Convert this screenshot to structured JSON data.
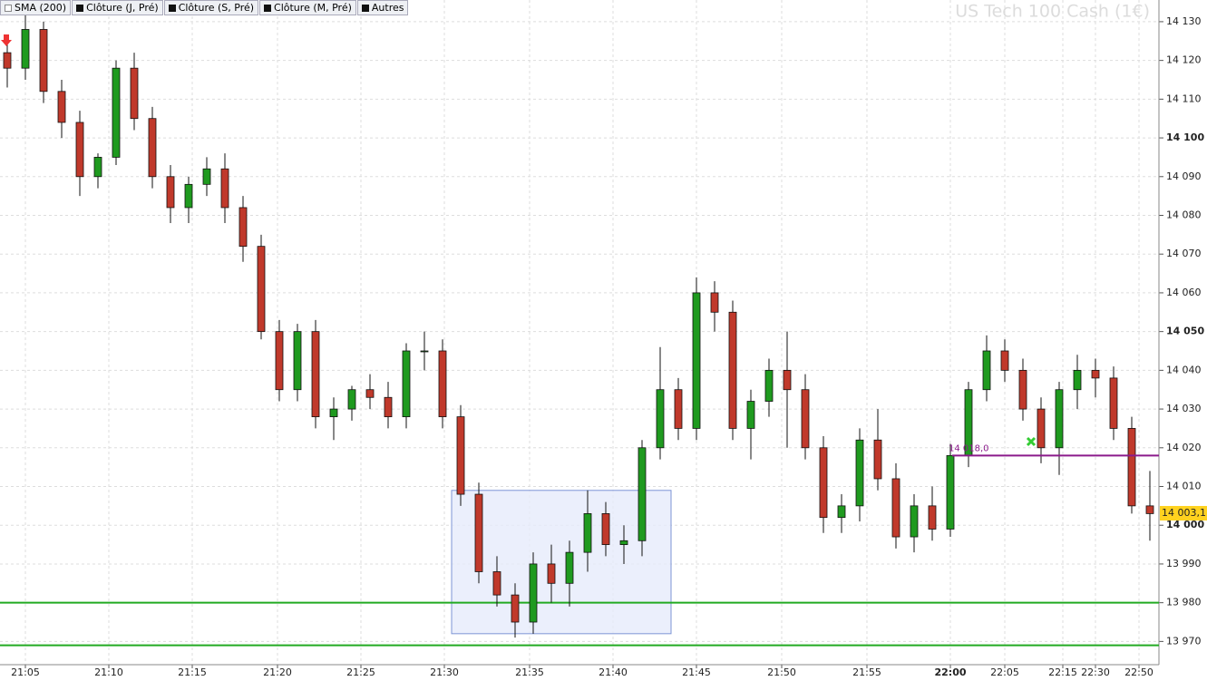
{
  "chart_data": {
    "type": "candlestick",
    "title": "US Tech 100 Cash (1€)",
    "toolbar": [
      "SMA (200)",
      "Clôture (J, Pré)",
      "Clôture (S, Pré)",
      "Clôture (M, Pré)",
      "Autres"
    ],
    "open": [
      14122,
      14118,
      14128,
      14112,
      14104,
      14090,
      14095,
      14118,
      14105,
      14090,
      14082,
      14088,
      14092,
      14082,
      14072,
      14050,
      14035,
      14050,
      14028,
      14030,
      14035,
      14033,
      14028,
      14045,
      14045,
      14028,
      14008,
      13988,
      13982,
      13975,
      13990,
      13985,
      13993,
      14003,
      13995,
      13996,
      14020,
      14035,
      14025,
      14060,
      14055,
      14025,
      14032,
      14040,
      14035,
      14020,
      14002,
      14005,
      14022,
      14012,
      13997,
      14005,
      13999,
      14018,
      14035,
      14045,
      14040,
      14030,
      14020,
      14035,
      14040,
      14038,
      14025,
      14005
    ],
    "high": [
      14126,
      14132,
      14130,
      14115,
      14107,
      14096,
      14120,
      14122,
      14108,
      14093,
      14090,
      14095,
      14096,
      14085,
      14075,
      14053,
      14052,
      14053,
      14033,
      14036,
      14039,
      14037,
      14047,
      14050,
      14048,
      14031,
      14011,
      13992,
      13985,
      13993,
      13995,
      13996,
      14009,
      14006,
      14000,
      14022,
      14046,
      14038,
      14064,
      14063,
      14058,
      14035,
      14043,
      14050,
      14039,
      14023,
      14008,
      14025,
      14030,
      14016,
      14008,
      14010,
      14021,
      14037,
      14049,
      14048,
      14043,
      14033,
      14037,
      14044,
      14043,
      14041,
      14028,
      14014
    ],
    "low": [
      14113,
      14115,
      14109,
      14100,
      14085,
      14087,
      14093,
      14102,
      14087,
      14078,
      14078,
      14085,
      14078,
      14068,
      14048,
      14032,
      14032,
      14025,
      14022,
      14027,
      14030,
      14025,
      14025,
      14040,
      14025,
      14005,
      13985,
      13979,
      13971,
      13972,
      13980,
      13979,
      13988,
      13992,
      13990,
      13992,
      14017,
      14022,
      14022,
      14050,
      14022,
      14017,
      14028,
      14020,
      14017,
      13998,
      13998,
      14001,
      14009,
      13994,
      13993,
      13996,
      13997,
      14015,
      14032,
      14037,
      14027,
      14016,
      14013,
      14030,
      14033,
      14022,
      14003,
      13996
    ],
    "close": [
      14118,
      14128,
      14112,
      14104,
      14090,
      14095,
      14118,
      14105,
      14090,
      14082,
      14088,
      14092,
      14082,
      14072,
      14050,
      14035,
      14050,
      14028,
      14030,
      14035,
      14033,
      14028,
      14045,
      14045,
      14028,
      14008,
      13988,
      13982,
      13975,
      13990,
      13985,
      13993,
      14003,
      13995,
      13996,
      14020,
      14035,
      14025,
      14060,
      14055,
      14025,
      14032,
      14040,
      14035,
      14020,
      14002,
      14005,
      14022,
      14012,
      13997,
      14005,
      13999,
      14018,
      14035,
      14045,
      14040,
      14030,
      14020,
      14035,
      14040,
      14038,
      14025,
      14005,
      14003
    ],
    "up_color": "#1f9a1f",
    "down_color": "#c0392b",
    "ylim": [
      13964,
      14135.6
    ],
    "yticks": [
      {
        "value": 13970,
        "label": "13 970"
      },
      {
        "value": 13980,
        "label": "13 980"
      },
      {
        "value": 13990,
        "label": "13 990"
      },
      {
        "value": 14000,
        "label": "14 000"
      },
      {
        "value": 14010,
        "label": "14 010"
      },
      {
        "value": 14020,
        "label": "14 020"
      },
      {
        "value": 14030,
        "label": "14 030"
      },
      {
        "value": 14040,
        "label": "14 040"
      },
      {
        "value": 14050,
        "label": "14 050"
      },
      {
        "value": 14060,
        "label": "14 060"
      },
      {
        "value": 14070,
        "label": "14 070"
      },
      {
        "value": 14080,
        "label": "14 080"
      },
      {
        "value": 14090,
        "label": "14 090"
      },
      {
        "value": 14100,
        "label": "14 100"
      },
      {
        "value": 14110,
        "label": "14 110"
      },
      {
        "value": 14120,
        "label": "14 120"
      },
      {
        "value": 14130,
        "label": "14 130"
      }
    ],
    "xlim": [
      -0.4,
      63.5
    ],
    "xticks": [
      {
        "value": 1.0,
        "label": "21:05"
      },
      {
        "value": 5.6,
        "label": "21:10"
      },
      {
        "value": 10.2,
        "label": "21:15"
      },
      {
        "value": 14.9,
        "label": "21:20"
      },
      {
        "value": 19.5,
        "label": "21:25"
      },
      {
        "value": 24.1,
        "label": "21:30"
      },
      {
        "value": 28.8,
        "label": "21:35"
      },
      {
        "value": 33.4,
        "label": "21:40"
      },
      {
        "value": 38.0,
        "label": "21:45"
      },
      {
        "value": 42.7,
        "label": "21:50"
      },
      {
        "value": 47.4,
        "label": "21:55"
      },
      {
        "value": 52.0,
        "label": "22:00"
      },
      {
        "value": 55.0,
        "label": "22:05"
      },
      {
        "value": 58.2,
        "label": "22:15"
      },
      {
        "value": 60.0,
        "label": "22:30"
      },
      {
        "value": 62.4,
        "label": "22:50"
      }
    ],
    "grid": true,
    "levels": [
      {
        "value": 13980,
        "color": "#22aa22"
      },
      {
        "value": 13969,
        "color": "#22aa22"
      }
    ],
    "order": {
      "value": 14018,
      "label": "14 018,0",
      "start": 52.1,
      "color": "#8b1a8b"
    },
    "zone": {
      "x": [
        24.5,
        36.6
      ],
      "y": [
        13972,
        14009
      ],
      "color": "#e6ebfb",
      "stroke": "#7d95d6"
    },
    "last_price": {
      "value": 14003.1,
      "label": "14 003,1",
      "color": "#ffd21f"
    }
  }
}
